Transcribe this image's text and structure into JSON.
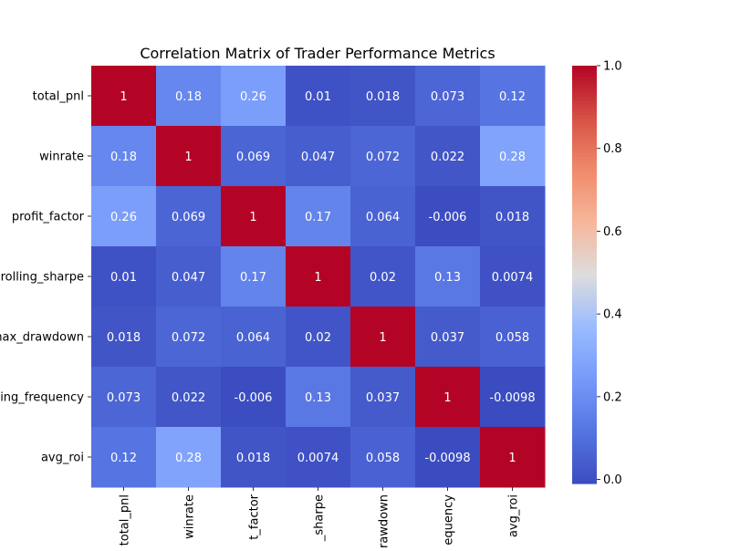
{
  "chart_data": {
    "type": "heatmap",
    "title": "Correlation Matrix of Trader Performance Metrics",
    "row_tick_labels": [
      "total_pnl",
      "winrate",
      "profit_factor",
      "rolling_sharpe",
      "max_drawdown",
      "trading_frequency",
      "avg_roi"
    ],
    "column_tick_labels": [
      "total_pnl",
      "winrate",
      "t_factor",
      "_sharpe",
      "rawdown",
      "equency",
      "avg_roi"
    ],
    "values": [
      [
        1,
        0.18,
        0.26,
        0.01,
        0.018,
        0.073,
        0.12
      ],
      [
        0.18,
        1,
        0.069,
        0.047,
        0.072,
        0.022,
        0.28
      ],
      [
        0.26,
        0.069,
        1,
        0.17,
        0.064,
        -0.006,
        0.018
      ],
      [
        0.01,
        0.047,
        0.17,
        1,
        0.02,
        0.13,
        0.0074
      ],
      [
        0.018,
        0.072,
        0.064,
        0.02,
        1,
        0.037,
        0.058
      ],
      [
        0.073,
        0.022,
        -0.006,
        0.13,
        0.037,
        1,
        -0.0098
      ],
      [
        0.12,
        0.28,
        0.018,
        0.0074,
        0.058,
        -0.0098,
        1
      ]
    ],
    "annotations": [
      [
        "1",
        "0.18",
        "0.26",
        "0.01",
        "0.018",
        "0.073",
        "0.12"
      ],
      [
        "0.18",
        "1",
        "0.069",
        "0.047",
        "0.072",
        "0.022",
        "0.28"
      ],
      [
        "0.26",
        "0.069",
        "1",
        "0.17",
        "0.064",
        "-0.006",
        "0.018"
      ],
      [
        "0.01",
        "0.047",
        "0.17",
        "1",
        "0.02",
        "0.13",
        "0.0074"
      ],
      [
        "0.018",
        "0.072",
        "0.064",
        "0.02",
        "1",
        "0.037",
        "0.058"
      ],
      [
        "0.073",
        "0.022",
        "-0.006",
        "0.13",
        "0.037",
        "1",
        "-0.0098"
      ],
      [
        "0.12",
        "0.28",
        "0.018",
        "0.0074",
        "0.058",
        "-0.0098",
        "1"
      ]
    ],
    "colormap": "coolwarm",
    "color_range": [
      -0.0098,
      1
    ],
    "colorbar_ticks": [
      0.0,
      0.2,
      0.4,
      0.6,
      0.8,
      1.0
    ],
    "colorbar_tick_labels": [
      "0.0",
      "0.2",
      "0.4",
      "0.6",
      "0.8",
      "1.0"
    ],
    "colorbar_position": "right"
  }
}
